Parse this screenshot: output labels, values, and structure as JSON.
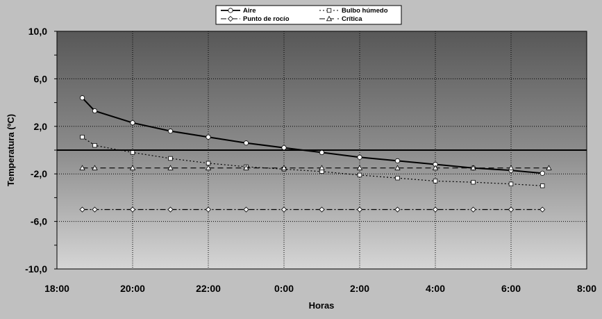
{
  "chart_data": {
    "type": "line",
    "xlabel": "Horas",
    "ylabel": "Temperatura (ºC)",
    "x_tick_labels": [
      "18:00",
      "20:00",
      "22:00",
      "0:00",
      "2:00",
      "4:00",
      "6:00",
      "8:00"
    ],
    "y_tick_labels": [
      "10,0",
      "6,0",
      "2,0",
      "-2,0",
      "-6,0",
      "-10,0"
    ],
    "xlim_hours": [
      18,
      32
    ],
    "ylim": [
      -10,
      10
    ],
    "grid": true,
    "legend_position": "top-center",
    "zero_line": true,
    "series": [
      {
        "name": "Aire",
        "style": "solid",
        "marker": "circle",
        "x": [
          18.67,
          19.0,
          20.0,
          21.0,
          22.0,
          23.0,
          24.0,
          25.0,
          26.0,
          27.0,
          28.0,
          29.0,
          30.0,
          30.83
        ],
        "values": [
          4.4,
          3.3,
          2.3,
          1.6,
          1.1,
          0.6,
          0.2,
          -0.2,
          -0.6,
          -0.9,
          -1.2,
          -1.5,
          -1.7,
          -1.95
        ]
      },
      {
        "name": "Bulbo húmedo",
        "style": "dotted",
        "marker": "square",
        "x": [
          18.67,
          19.0,
          20.0,
          21.0,
          22.0,
          23.0,
          24.0,
          25.0,
          26.0,
          27.0,
          28.0,
          29.0,
          30.0,
          30.83
        ],
        "values": [
          1.1,
          0.4,
          -0.2,
          -0.7,
          -1.1,
          -1.4,
          -1.6,
          -1.8,
          -2.1,
          -2.35,
          -2.6,
          -2.7,
          -2.85,
          -3.0
        ]
      },
      {
        "name": "Punto de rocío",
        "style": "dashdot",
        "marker": "diamond",
        "x": [
          18.67,
          19.0,
          20.0,
          21.0,
          22.0,
          23.0,
          24.0,
          25.0,
          26.0,
          27.0,
          28.0,
          29.0,
          30.0,
          30.83
        ],
        "values": [
          -5.0,
          -5.0,
          -5.0,
          -5.0,
          -5.0,
          -5.0,
          -5.0,
          -5.0,
          -5.0,
          -5.0,
          -5.0,
          -5.0,
          -5.0,
          -5.0
        ]
      },
      {
        "name": "Crítica",
        "style": "dashed",
        "marker": "triangle",
        "x": [
          18.67,
          19.0,
          20.0,
          21.0,
          22.0,
          23.0,
          24.0,
          25.0,
          26.0,
          27.0,
          28.0,
          29.0,
          30.0,
          31.0
        ],
        "values": [
          -1.5,
          -1.5,
          -1.5,
          -1.5,
          -1.5,
          -1.5,
          -1.5,
          -1.5,
          -1.5,
          -1.5,
          -1.5,
          -1.5,
          -1.5,
          -1.5
        ]
      }
    ]
  }
}
